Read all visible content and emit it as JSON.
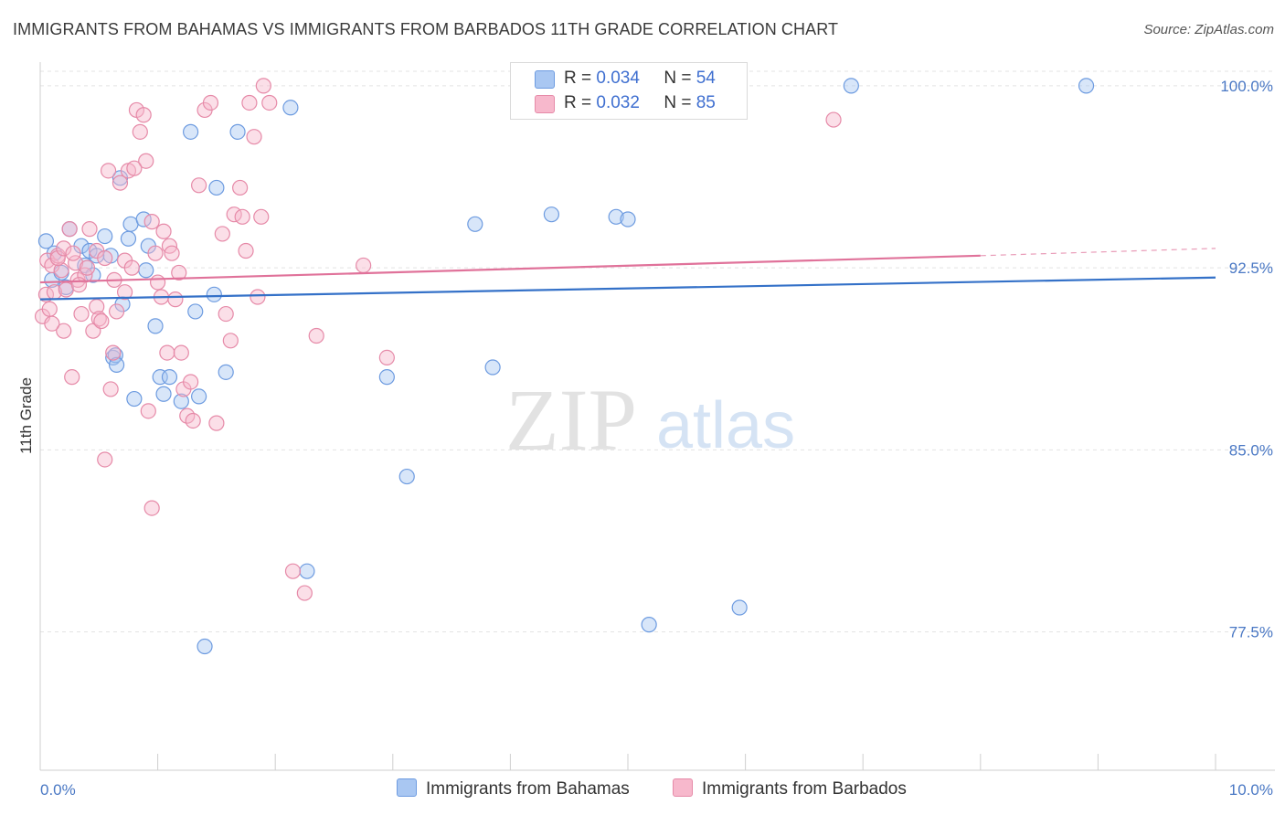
{
  "title": "IMMIGRANTS FROM BAHAMAS VS IMMIGRANTS FROM BARBADOS 11TH GRADE CORRELATION CHART",
  "source": "Source: ZipAtlas.com",
  "watermark": {
    "zip": "ZIP",
    "atlas": "atlas"
  },
  "legend": {
    "r_label": "R =",
    "n_label": "N =",
    "rows": [
      {
        "r": "0.034",
        "n": "54",
        "color": "#a9c7f2",
        "border": "#6d9be0"
      },
      {
        "r": "0.032",
        "n": "85",
        "color": "#f7b8cc",
        "border": "#e68aa8"
      }
    ]
  },
  "bottom_legend": [
    {
      "label": "Immigrants from Bahamas",
      "color": "#a9c7f2",
      "border": "#6d9be0"
    },
    {
      "label": "Immigrants from Barbados",
      "color": "#f7b8cc",
      "border": "#e68aa8"
    }
  ],
  "chart_data": {
    "type": "scatter",
    "title": "IMMIGRANTS FROM BAHAMAS VS IMMIGRANTS FROM BARBADOS 11TH GRADE CORRELATION CHART",
    "xlabel": "",
    "ylabel": "11th Grade",
    "xlim": [
      0,
      10
    ],
    "ylim": [
      71.8,
      101.2
    ],
    "x_tick_labels": [
      {
        "value": 0,
        "label": "0.0%"
      },
      {
        "value": 10,
        "label": "10.0%"
      }
    ],
    "y_tick_labels": [
      {
        "value": 100,
        "label": "100.0%"
      },
      {
        "value": 92.5,
        "label": "92.5%"
      },
      {
        "value": 85,
        "label": "85.0%"
      },
      {
        "value": 77.5,
        "label": "77.5%"
      }
    ],
    "series": [
      {
        "name": "Immigrants from Bahamas",
        "color": "#a9c7f2",
        "stroke": "#6d9be0",
        "trend": {
          "x0": 0,
          "y0": 91.2,
          "x1": 10,
          "y1": 92.1,
          "color": "#3471c8"
        },
        "points": [
          [
            0.05,
            93.6
          ],
          [
            0.1,
            92.0
          ],
          [
            0.12,
            93.1
          ],
          [
            0.18,
            92.3
          ],
          [
            0.22,
            91.7
          ],
          [
            0.25,
            94.1
          ],
          [
            0.35,
            93.4
          ],
          [
            0.38,
            92.6
          ],
          [
            0.42,
            93.2
          ],
          [
            0.45,
            92.2
          ],
          [
            0.48,
            93.0
          ],
          [
            0.55,
            93.8
          ],
          [
            0.6,
            93.0
          ],
          [
            0.62,
            88.8
          ],
          [
            0.64,
            88.9
          ],
          [
            0.65,
            88.5
          ],
          [
            0.68,
            96.2
          ],
          [
            0.7,
            91.0
          ],
          [
            0.75,
            93.7
          ],
          [
            0.77,
            94.3
          ],
          [
            0.8,
            87.1
          ],
          [
            0.88,
            94.5
          ],
          [
            0.9,
            92.4
          ],
          [
            0.92,
            93.4
          ],
          [
            0.98,
            90.1
          ],
          [
            1.02,
            88.0
          ],
          [
            1.05,
            87.3
          ],
          [
            1.1,
            88.0
          ],
          [
            1.2,
            87.0
          ],
          [
            1.28,
            98.1
          ],
          [
            1.32,
            90.7
          ],
          [
            1.35,
            87.2
          ],
          [
            1.4,
            76.9
          ],
          [
            1.48,
            91.4
          ],
          [
            1.5,
            95.8
          ],
          [
            1.58,
            88.2
          ],
          [
            1.68,
            98.1
          ],
          [
            2.13,
            99.1
          ],
          [
            2.27,
            80.0
          ],
          [
            2.95,
            88.0
          ],
          [
            3.12,
            83.9
          ],
          [
            3.7,
            94.3
          ],
          [
            3.85,
            88.4
          ],
          [
            4.35,
            94.7
          ],
          [
            4.9,
            94.6
          ],
          [
            5.0,
            94.5
          ],
          [
            5.18,
            77.8
          ],
          [
            5.95,
            78.5
          ],
          [
            6.9,
            100.0
          ],
          [
            8.9,
            100.0
          ]
        ]
      },
      {
        "name": "Immigrants from Barbados",
        "color": "#f7b8cc",
        "stroke": "#e68aa8",
        "trend": {
          "x0": 0,
          "y0": 91.9,
          "x1": 8.0,
          "y1": 93.0,
          "dash_to_x": 10,
          "dash_to_y": 93.3,
          "color": "#e0729a"
        },
        "points": [
          [
            0.02,
            90.5
          ],
          [
            0.05,
            91.4
          ],
          [
            0.06,
            92.8
          ],
          [
            0.08,
            90.8
          ],
          [
            0.1,
            92.6
          ],
          [
            0.12,
            91.5
          ],
          [
            0.15,
            93.0
          ],
          [
            0.18,
            92.4
          ],
          [
            0.2,
            89.9
          ],
          [
            0.22,
            91.6
          ],
          [
            0.25,
            94.1
          ],
          [
            0.27,
            88.0
          ],
          [
            0.3,
            92.7
          ],
          [
            0.32,
            92.0
          ],
          [
            0.35,
            90.6
          ],
          [
            0.38,
            92.2
          ],
          [
            0.4,
            92.5
          ],
          [
            0.42,
            94.1
          ],
          [
            0.45,
            89.9
          ],
          [
            0.48,
            90.9
          ],
          [
            0.5,
            90.4
          ],
          [
            0.52,
            90.3
          ],
          [
            0.55,
            84.6
          ],
          [
            0.58,
            96.5
          ],
          [
            0.6,
            87.5
          ],
          [
            0.62,
            89.0
          ],
          [
            0.65,
            90.7
          ],
          [
            0.68,
            96.0
          ],
          [
            0.72,
            92.8
          ],
          [
            0.75,
            96.5
          ],
          [
            0.78,
            92.5
          ],
          [
            0.82,
            99.0
          ],
          [
            0.85,
            98.1
          ],
          [
            0.88,
            98.8
          ],
          [
            0.9,
            96.9
          ],
          [
            0.92,
            86.6
          ],
          [
            0.95,
            82.6
          ],
          [
            0.98,
            93.1
          ],
          [
            1.0,
            91.9
          ],
          [
            1.03,
            91.3
          ],
          [
            1.05,
            94.0
          ],
          [
            1.08,
            89.0
          ],
          [
            1.1,
            93.4
          ],
          [
            1.12,
            93.1
          ],
          [
            1.15,
            91.2
          ],
          [
            1.18,
            92.3
          ],
          [
            1.2,
            89.0
          ],
          [
            1.22,
            87.5
          ],
          [
            1.25,
            86.4
          ],
          [
            1.28,
            87.8
          ],
          [
            1.3,
            86.2
          ],
          [
            1.35,
            95.9
          ],
          [
            1.4,
            99.0
          ],
          [
            1.45,
            99.3
          ],
          [
            1.5,
            86.1
          ],
          [
            1.55,
            93.9
          ],
          [
            1.58,
            90.6
          ],
          [
            1.62,
            89.5
          ],
          [
            1.65,
            94.7
          ],
          [
            1.7,
            95.8
          ],
          [
            1.72,
            94.6
          ],
          [
            1.75,
            93.2
          ],
          [
            1.78,
            99.3
          ],
          [
            1.82,
            97.9
          ],
          [
            1.85,
            91.3
          ],
          [
            1.88,
            94.6
          ],
          [
            1.9,
            100.0
          ],
          [
            1.95,
            99.3
          ],
          [
            2.15,
            80.0
          ],
          [
            2.25,
            79.1
          ],
          [
            2.35,
            89.7
          ],
          [
            2.75,
            92.6
          ],
          [
            2.95,
            88.8
          ],
          [
            6.75,
            98.6
          ],
          [
            0.1,
            90.2
          ],
          [
            0.15,
            92.9
          ],
          [
            0.2,
            93.3
          ],
          [
            0.28,
            93.1
          ],
          [
            0.33,
            91.8
          ],
          [
            0.48,
            93.2
          ],
          [
            0.55,
            92.9
          ],
          [
            0.63,
            92.0
          ],
          [
            0.72,
            91.5
          ],
          [
            0.8,
            96.6
          ],
          [
            0.95,
            94.4
          ]
        ]
      }
    ]
  }
}
